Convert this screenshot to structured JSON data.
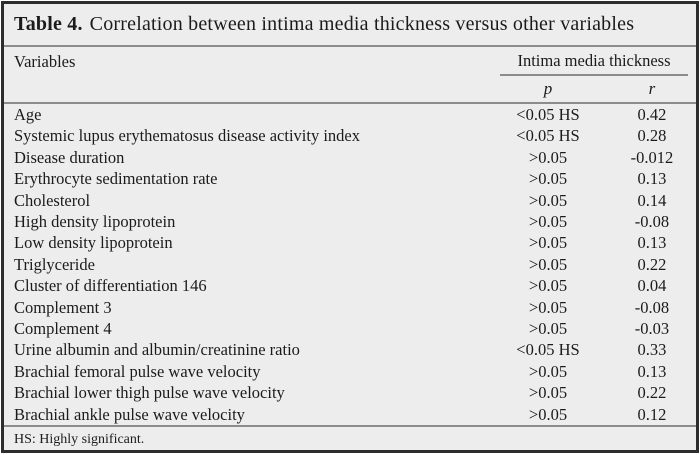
{
  "title": {
    "label": "Table 4.",
    "text": "Correlation between intima media thickness versus other variables"
  },
  "table": {
    "col_variables": "Variables",
    "group_header": "Intima media thickness",
    "col_p": "p",
    "col_r": "r",
    "rows": [
      {
        "variable": "Age",
        "p": "<0.05 HS",
        "r": "0.42"
      },
      {
        "variable": "Systemic lupus erythematosus disease activity index",
        "p": "<0.05 HS",
        "r": "0.28"
      },
      {
        "variable": "Disease duration",
        "p": ">0.05",
        "r": "-0.012"
      },
      {
        "variable": "Erythrocyte sedimentation rate",
        "p": ">0.05",
        "r": "0.13"
      },
      {
        "variable": "Cholesterol",
        "p": ">0.05",
        "r": "0.14"
      },
      {
        "variable": "High density lipoprotein",
        "p": ">0.05",
        "r": "-0.08"
      },
      {
        "variable": "Low density lipoprotein",
        "p": ">0.05",
        "r": "0.13"
      },
      {
        "variable": "Triglyceride",
        "p": ">0.05",
        "r": "0.22"
      },
      {
        "variable": "Cluster of differentiation 146",
        "p": ">0.05",
        "r": "0.04"
      },
      {
        "variable": "Complement 3",
        "p": ">0.05",
        "r": "-0.08"
      },
      {
        "variable": "Complement 4",
        "p": ">0.05",
        "r": "-0.03"
      },
      {
        "variable": "Urine albumin and albumin/creatinine ratio",
        "p": "<0.05 HS",
        "r": "0.33"
      },
      {
        "variable": "Brachial femoral pulse wave velocity",
        "p": ">0.05",
        "r": "0.13"
      },
      {
        "variable": "Brachial lower thigh pulse wave velocity",
        "p": ">0.05",
        "r": "0.22"
      },
      {
        "variable": "Brachial ankle pulse wave velocity",
        "p": ">0.05",
        "r": "0.12"
      }
    ]
  },
  "footnote": "HS: Highly significant.",
  "colors": {
    "background": "#ededed",
    "border": "#2d2d2d",
    "rule": "#8c8c8c",
    "text": "#1b1b1b"
  }
}
